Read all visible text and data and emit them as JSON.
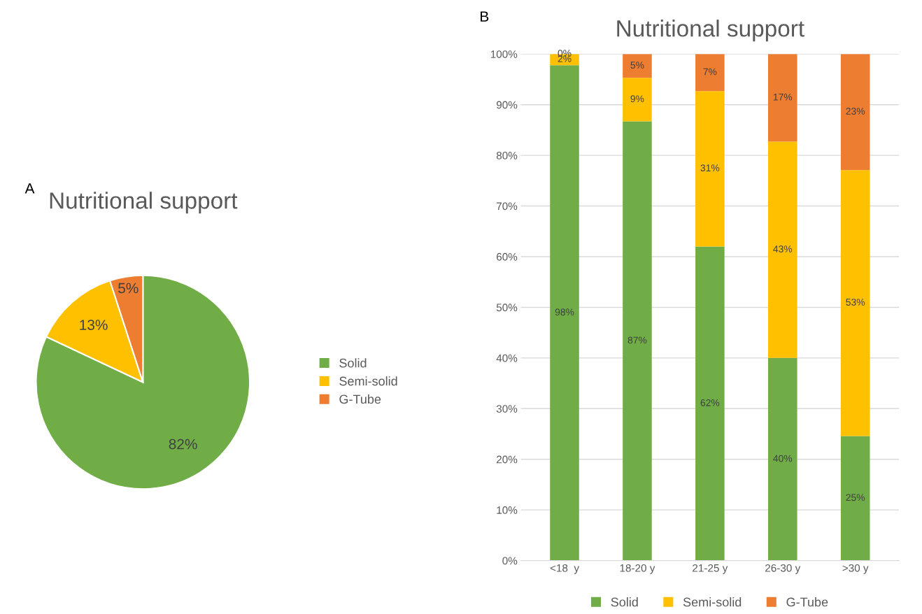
{
  "chart_data": [
    {
      "type": "pie",
      "title": "Nutritional support",
      "annotations": [
        "A"
      ],
      "categories": [
        "Solid",
        "Semi-solid",
        "G-Tube"
      ],
      "values": [
        82,
        13,
        5
      ],
      "colors": [
        "#70ad47",
        "#ffc000",
        "#ed7d31"
      ],
      "value_labels": [
        "82%",
        "13%",
        "5%"
      ],
      "legend": "right"
    },
    {
      "type": "bar",
      "stacked": true,
      "title": "Nutritional support",
      "annotations": [
        "B"
      ],
      "categories": [
        "<18  y",
        "18-20 y",
        "21-25 y",
        "26-30 y",
        ">30 y"
      ],
      "series": [
        {
          "name": "Solid",
          "color": "#70ad47",
          "values": [
            97.8,
            86.7,
            62.0,
            40.0,
            24.6
          ],
          "value_labels": [
            "98%",
            "87%",
            "62%",
            "40%",
            "25%"
          ]
        },
        {
          "name": "Semi-solid",
          "color": "#ffc000",
          "values": [
            2.2,
            8.6,
            30.7,
            42.7,
            52.5
          ],
          "value_labels": [
            "2%",
            "9%",
            "31%",
            "43%",
            "53%"
          ]
        },
        {
          "name": "G-Tube",
          "color": "#ed7d31",
          "values": [
            0,
            4.7,
            7.3,
            17.3,
            22.9
          ],
          "value_labels": [
            "0%",
            "5%",
            "7%",
            "17%",
            "23%"
          ]
        }
      ],
      "ylim": [
        0,
        100
      ],
      "yticks": [
        {
          "value": 0,
          "label": "0%"
        },
        {
          "value": 10,
          "label": "10%"
        },
        {
          "value": 20,
          "label": "20%"
        },
        {
          "value": 30,
          "label": "30%"
        },
        {
          "value": 40,
          "label": "40%"
        },
        {
          "value": 50,
          "label": "50%"
        },
        {
          "value": 60,
          "label": "60%"
        },
        {
          "value": 70,
          "label": "70%"
        },
        {
          "value": 80,
          "label": "80%"
        },
        {
          "value": 90,
          "label": "90%"
        },
        {
          "value": 100,
          "label": "100%"
        }
      ],
      "grid": "y",
      "legend": "bottom"
    }
  ]
}
